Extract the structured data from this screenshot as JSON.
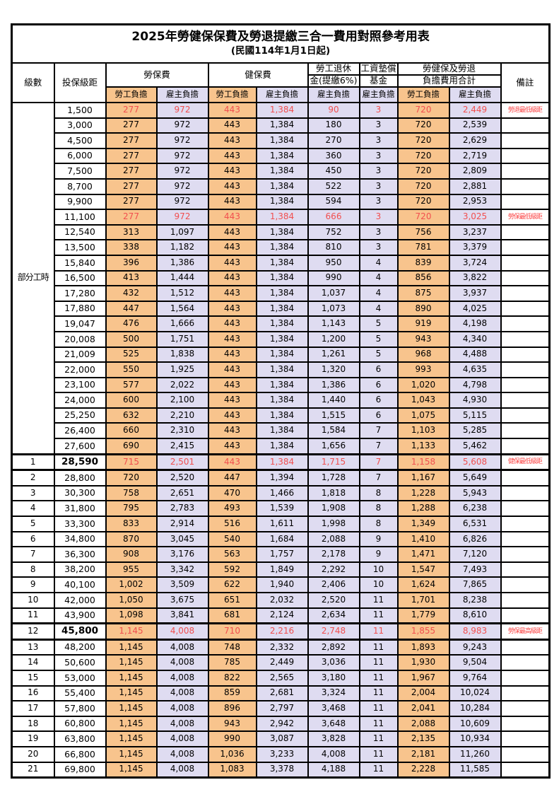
{
  "title": "2025年勞健保保費及勞退提繳三合一費用對照參考用表",
  "subtitle": "(民國114年1月1日起)",
  "colors": {
    "employee_fill": "#f8c48d",
    "employer_fill": "#dfdcf1",
    "highlight_value_text": "#f14f4f",
    "remark_text": "#fb4747",
    "border": "#000000"
  },
  "header": {
    "level": "級數",
    "salary_bracket": "投保級距",
    "labor_insurance": "勞保費",
    "health_insurance": "健保費",
    "pension_line1": "勞工退休",
    "pension_line2": "金(提繳6%)",
    "fund_line1": "工資墊償",
    "fund_line2": "基金",
    "total_line1": "勞健保及勞退",
    "total_line2": "負擔費用合計",
    "remark": "備註",
    "employee": "勞工負擔",
    "employer": "雇主負擔"
  },
  "part_time_label": "部分工時",
  "part_time_span": 23,
  "rows": [
    {
      "level": "",
      "salary": "1,500",
      "values": [
        "277",
        "972",
        "443",
        "1,384",
        "90",
        "3",
        "720",
        "2,449"
      ],
      "remark": "勞退最低級距",
      "red": true,
      "strong": false
    },
    {
      "level": "",
      "salary": "3,000",
      "values": [
        "277",
        "972",
        "443",
        "1,384",
        "180",
        "3",
        "720",
        "2,539"
      ],
      "remark": "",
      "red": false,
      "strong": false
    },
    {
      "level": "",
      "salary": "4,500",
      "values": [
        "277",
        "972",
        "443",
        "1,384",
        "270",
        "3",
        "720",
        "2,629"
      ],
      "remark": "",
      "red": false,
      "strong": false
    },
    {
      "level": "",
      "salary": "6,000",
      "values": [
        "277",
        "972",
        "443",
        "1,384",
        "360",
        "3",
        "720",
        "2,719"
      ],
      "remark": "",
      "red": false,
      "strong": false
    },
    {
      "level": "",
      "salary": "7,500",
      "values": [
        "277",
        "972",
        "443",
        "1,384",
        "450",
        "3",
        "720",
        "2,809"
      ],
      "remark": "",
      "red": false,
      "strong": false
    },
    {
      "level": "",
      "salary": "8,700",
      "values": [
        "277",
        "972",
        "443",
        "1,384",
        "522",
        "3",
        "720",
        "2,881"
      ],
      "remark": "",
      "red": false,
      "strong": false
    },
    {
      "level": "",
      "salary": "9,900",
      "values": [
        "277",
        "972",
        "443",
        "1,384",
        "594",
        "3",
        "720",
        "2,953"
      ],
      "remark": "",
      "red": false,
      "strong": false
    },
    {
      "level": "",
      "salary": "11,100",
      "values": [
        "277",
        "972",
        "443",
        "1,384",
        "666",
        "3",
        "720",
        "3,025"
      ],
      "remark": "勞保最低級距",
      "red": true,
      "strong": false
    },
    {
      "level": "",
      "salary": "12,540",
      "values": [
        "313",
        "1,097",
        "443",
        "1,384",
        "752",
        "3",
        "756",
        "3,237"
      ],
      "remark": "",
      "red": false,
      "strong": false
    },
    {
      "level": "",
      "salary": "13,500",
      "values": [
        "338",
        "1,182",
        "443",
        "1,384",
        "810",
        "3",
        "781",
        "3,379"
      ],
      "remark": "",
      "red": false,
      "strong": false
    },
    {
      "level": "",
      "salary": "15,840",
      "values": [
        "396",
        "1,386",
        "443",
        "1,384",
        "950",
        "4",
        "839",
        "3,724"
      ],
      "remark": "",
      "red": false,
      "strong": false
    },
    {
      "level": "",
      "salary": "16,500",
      "values": [
        "413",
        "1,444",
        "443",
        "1,384",
        "990",
        "4",
        "856",
        "3,822"
      ],
      "remark": "",
      "red": false,
      "strong": false
    },
    {
      "level": "",
      "salary": "17,280",
      "values": [
        "432",
        "1,512",
        "443",
        "1,384",
        "1,037",
        "4",
        "875",
        "3,937"
      ],
      "remark": "",
      "red": false,
      "strong": false
    },
    {
      "level": "",
      "salary": "17,880",
      "values": [
        "447",
        "1,564",
        "443",
        "1,384",
        "1,073",
        "4",
        "890",
        "4,025"
      ],
      "remark": "",
      "red": false,
      "strong": false
    },
    {
      "level": "",
      "salary": "19,047",
      "values": [
        "476",
        "1,666",
        "443",
        "1,384",
        "1,143",
        "5",
        "919",
        "4,198"
      ],
      "remark": "",
      "red": false,
      "strong": false
    },
    {
      "level": "",
      "salary": "20,008",
      "values": [
        "500",
        "1,751",
        "443",
        "1,384",
        "1,200",
        "5",
        "943",
        "4,340"
      ],
      "remark": "",
      "red": false,
      "strong": false
    },
    {
      "level": "",
      "salary": "21,009",
      "values": [
        "525",
        "1,838",
        "443",
        "1,384",
        "1,261",
        "5",
        "968",
        "4,488"
      ],
      "remark": "",
      "red": false,
      "strong": false
    },
    {
      "level": "",
      "salary": "22,000",
      "values": [
        "550",
        "1,925",
        "443",
        "1,384",
        "1,320",
        "6",
        "993",
        "4,635"
      ],
      "remark": "",
      "red": false,
      "strong": false
    },
    {
      "level": "",
      "salary": "23,100",
      "values": [
        "577",
        "2,022",
        "443",
        "1,384",
        "1,386",
        "6",
        "1,020",
        "4,798"
      ],
      "remark": "",
      "red": false,
      "strong": false
    },
    {
      "level": "",
      "salary": "24,000",
      "values": [
        "600",
        "2,100",
        "443",
        "1,384",
        "1,440",
        "6",
        "1,043",
        "4,930"
      ],
      "remark": "",
      "red": false,
      "strong": false
    },
    {
      "level": "",
      "salary": "25,250",
      "values": [
        "632",
        "2,210",
        "443",
        "1,384",
        "1,515",
        "6",
        "1,075",
        "5,115"
      ],
      "remark": "",
      "red": false,
      "strong": false
    },
    {
      "level": "",
      "salary": "26,400",
      "values": [
        "660",
        "2,310",
        "443",
        "1,384",
        "1,584",
        "7",
        "1,103",
        "5,285"
      ],
      "remark": "",
      "red": false,
      "strong": false
    },
    {
      "level": "",
      "salary": "27,600",
      "values": [
        "690",
        "2,415",
        "443",
        "1,384",
        "1,656",
        "7",
        "1,133",
        "5,462"
      ],
      "remark": "",
      "red": false,
      "strong": false
    },
    {
      "level": "1",
      "salary": "28,590",
      "values": [
        "715",
        "2,501",
        "443",
        "1,384",
        "1,715",
        "7",
        "1,158",
        "5,608"
      ],
      "remark": "健保最低級距",
      "red": true,
      "strong": true
    },
    {
      "level": "2",
      "salary": "28,800",
      "values": [
        "720",
        "2,520",
        "447",
        "1,394",
        "1,728",
        "7",
        "1,167",
        "5,649"
      ],
      "remark": "",
      "red": false,
      "strong": false
    },
    {
      "level": "3",
      "salary": "30,300",
      "values": [
        "758",
        "2,651",
        "470",
        "1,466",
        "1,818",
        "8",
        "1,228",
        "5,943"
      ],
      "remark": "",
      "red": false,
      "strong": false
    },
    {
      "level": "4",
      "salary": "31,800",
      "values": [
        "795",
        "2,783",
        "493",
        "1,539",
        "1,908",
        "8",
        "1,288",
        "6,238"
      ],
      "remark": "",
      "red": false,
      "strong": false
    },
    {
      "level": "5",
      "salary": "33,300",
      "values": [
        "833",
        "2,914",
        "516",
        "1,611",
        "1,998",
        "8",
        "1,349",
        "6,531"
      ],
      "remark": "",
      "red": false,
      "strong": false
    },
    {
      "level": "6",
      "salary": "34,800",
      "values": [
        "870",
        "3,045",
        "540",
        "1,684",
        "2,088",
        "9",
        "1,410",
        "6,826"
      ],
      "remark": "",
      "red": false,
      "strong": false
    },
    {
      "level": "7",
      "salary": "36,300",
      "values": [
        "908",
        "3,176",
        "563",
        "1,757",
        "2,178",
        "9",
        "1,471",
        "7,120"
      ],
      "remark": "",
      "red": false,
      "strong": false
    },
    {
      "level": "8",
      "salary": "38,200",
      "values": [
        "955",
        "3,342",
        "592",
        "1,849",
        "2,292",
        "10",
        "1,547",
        "7,493"
      ],
      "remark": "",
      "red": false,
      "strong": false
    },
    {
      "level": "9",
      "salary": "40,100",
      "values": [
        "1,002",
        "3,509",
        "622",
        "1,940",
        "2,406",
        "10",
        "1,624",
        "7,865"
      ],
      "remark": "",
      "red": false,
      "strong": false
    },
    {
      "level": "10",
      "salary": "42,000",
      "values": [
        "1,050",
        "3,675",
        "651",
        "2,032",
        "2,520",
        "11",
        "1,701",
        "8,238"
      ],
      "remark": "",
      "red": false,
      "strong": false
    },
    {
      "level": "11",
      "salary": "43,900",
      "values": [
        "1,098",
        "3,841",
        "681",
        "2,124",
        "2,634",
        "11",
        "1,779",
        "8,610"
      ],
      "remark": "",
      "red": false,
      "strong": false
    },
    {
      "level": "12",
      "salary": "45,800",
      "values": [
        "1,145",
        "4,008",
        "710",
        "2,216",
        "2,748",
        "11",
        "1,855",
        "8,983"
      ],
      "remark": "勞保最高級距",
      "red": true,
      "strong": true
    },
    {
      "level": "13",
      "salary": "48,200",
      "values": [
        "1,145",
        "4,008",
        "748",
        "2,332",
        "2,892",
        "11",
        "1,893",
        "9,243"
      ],
      "remark": "",
      "red": false,
      "strong": false
    },
    {
      "level": "14",
      "salary": "50,600",
      "values": [
        "1,145",
        "4,008",
        "785",
        "2,449",
        "3,036",
        "11",
        "1,930",
        "9,504"
      ],
      "remark": "",
      "red": false,
      "strong": false
    },
    {
      "level": "15",
      "salary": "53,000",
      "values": [
        "1,145",
        "4,008",
        "822",
        "2,565",
        "3,180",
        "11",
        "1,967",
        "9,764"
      ],
      "remark": "",
      "red": false,
      "strong": false
    },
    {
      "level": "16",
      "salary": "55,400",
      "values": [
        "1,145",
        "4,008",
        "859",
        "2,681",
        "3,324",
        "11",
        "2,004",
        "10,024"
      ],
      "remark": "",
      "red": false,
      "strong": false
    },
    {
      "level": "17",
      "salary": "57,800",
      "values": [
        "1,145",
        "4,008",
        "896",
        "2,797",
        "3,468",
        "11",
        "2,041",
        "10,284"
      ],
      "remark": "",
      "red": false,
      "strong": false
    },
    {
      "level": "18",
      "salary": "60,800",
      "values": [
        "1,145",
        "4,008",
        "943",
        "2,942",
        "3,648",
        "11",
        "2,088",
        "10,609"
      ],
      "remark": "",
      "red": false,
      "strong": false
    },
    {
      "level": "19",
      "salary": "63,800",
      "values": [
        "1,145",
        "4,008",
        "990",
        "3,087",
        "3,828",
        "11",
        "2,135",
        "10,934"
      ],
      "remark": "",
      "red": false,
      "strong": false
    },
    {
      "level": "20",
      "salary": "66,800",
      "values": [
        "1,145",
        "4,008",
        "1,036",
        "3,233",
        "4,008",
        "11",
        "2,181",
        "11,260"
      ],
      "remark": "",
      "red": false,
      "strong": false
    },
    {
      "level": "21",
      "salary": "69,800",
      "values": [
        "1,145",
        "4,008",
        "1,083",
        "3,378",
        "4,188",
        "11",
        "2,228",
        "11,585"
      ],
      "remark": "",
      "red": false,
      "strong": false
    }
  ]
}
